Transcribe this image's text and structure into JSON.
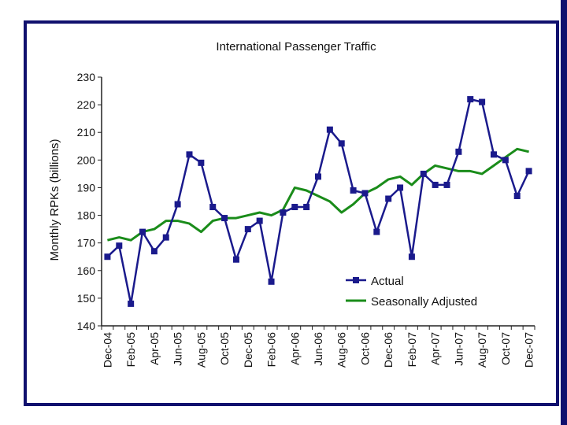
{
  "chart_data": {
    "type": "line",
    "title": "International Passenger Traffic",
    "xlabel": "",
    "ylabel": "Monthly RPKs (billions)",
    "ylim": [
      140,
      230
    ],
    "yticks": [
      140,
      150,
      160,
      170,
      180,
      190,
      200,
      210,
      220,
      230
    ],
    "x_months": [
      "Dec-04",
      "Jan-05",
      "Feb-05",
      "Mar-05",
      "Apr-05",
      "May-05",
      "Jun-05",
      "Jul-05",
      "Aug-05",
      "Sep-05",
      "Oct-05",
      "Nov-05",
      "Dec-05",
      "Jan-06",
      "Feb-06",
      "Mar-06",
      "Apr-06",
      "May-06",
      "Jun-06",
      "Jul-06",
      "Aug-06",
      "Sep-06",
      "Oct-06",
      "Nov-06",
      "Dec-06",
      "Jan-07",
      "Feb-07",
      "Mar-07",
      "Apr-07",
      "May-07",
      "Jun-07",
      "Jul-07",
      "Aug-07",
      "Sep-07",
      "Oct-07",
      "Nov-07",
      "Dec-07"
    ],
    "tick_labels": [
      "Dec-04",
      "Feb-05",
      "Apr-05",
      "Jun-05",
      "Aug-05",
      "Oct-05",
      "Dec-05",
      "Feb-06",
      "Apr-06",
      "Jun-06",
      "Aug-06",
      "Oct-06",
      "Dec-06",
      "Feb-07",
      "Apr-07",
      "Jun-07",
      "Aug-07",
      "Oct-07",
      "Dec-07"
    ],
    "series": [
      {
        "name": "Actual",
        "color": "#1a1a8c",
        "marker": "square",
        "values": [
          165,
          169,
          148,
          174,
          167,
          172,
          184,
          202,
          199,
          183,
          179,
          164,
          175,
          178,
          156,
          181,
          183,
          183,
          194,
          211,
          206,
          189,
          188,
          174,
          186,
          190,
          165,
          195,
          191,
          191,
          203,
          222,
          221,
          202,
          200,
          187,
          196
        ]
      },
      {
        "name": "Seasonally Adjusted",
        "color": "#1a8c1a",
        "marker": "none",
        "values": [
          171,
          172,
          171,
          174,
          175,
          178,
          178,
          177,
          174,
          178,
          179,
          179,
          180,
          181,
          180,
          182,
          190,
          189,
          187,
          185,
          181,
          184,
          188,
          190,
          193,
          194,
          191,
          195,
          198,
          197,
          196,
          196,
          195,
          198,
          201,
          204,
          203
        ]
      }
    ],
    "legend": [
      "Actual",
      "Seasonally Adjusted"
    ],
    "legend_position": "bottom-right-inside",
    "grid": false
  }
}
